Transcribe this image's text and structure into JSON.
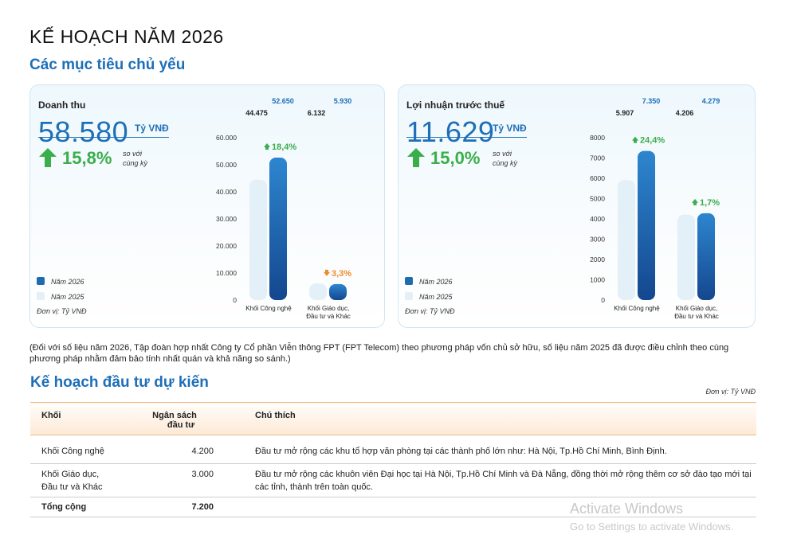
{
  "page_title": "KẾ HOẠCH NĂM 2026",
  "section1_title": "Các mục tiêu chủ yếu",
  "colors": {
    "accent": "#1d6fb8",
    "green": "#3aae4a",
    "orange": "#f08a2c",
    "bar2025": "#e4f0f8"
  },
  "revenue": {
    "label": "Doanh thu",
    "value": "58.580",
    "unit": "Tỷ VNĐ",
    "growth": "15,8%",
    "compare": [
      "so với",
      "cùng kỳ"
    ],
    "legend": [
      "Năm 2026",
      "Năm 2025"
    ],
    "unit_note": "Đơn vị: Tỷ VNĐ"
  },
  "profit": {
    "label": "Lợi nhuận trước thuế",
    "value": "11.629",
    "unit": "Tỷ VNĐ",
    "growth": "15,0%",
    "compare": [
      "so với",
      "cùng kỳ"
    ],
    "legend": [
      "Năm 2026",
      "Năm 2025"
    ],
    "unit_note": "Đơn vị: Tỷ VNĐ"
  },
  "chart_data": [
    {
      "type": "bar",
      "title": "Doanh thu",
      "categories": [
        "Khối Công nghệ",
        "Khối Giáo dục, Đầu tư và Khác"
      ],
      "series": [
        {
          "name": "Năm 2025",
          "values": [
            44475,
            6132
          ],
          "labels": [
            "44.475",
            "6.132"
          ]
        },
        {
          "name": "Năm 2026",
          "values": [
            52650,
            5930
          ],
          "labels": [
            "52.650",
            "5.930"
          ]
        }
      ],
      "growth": [
        "18,4%",
        "3,3%"
      ],
      "growth_direction": [
        "up",
        "down"
      ],
      "yticks": [
        "0",
        "10.000",
        "20.000",
        "30.000",
        "40.000",
        "50.000",
        "60.000"
      ],
      "ylim": [
        0,
        60000
      ]
    },
    {
      "type": "bar",
      "title": "Lợi nhuận trước thuế",
      "categories": [
        "Khối Công nghệ",
        "Khối Giáo dục, Đầu tư và Khác"
      ],
      "series": [
        {
          "name": "Năm 2025",
          "values": [
            5907,
            4206
          ],
          "labels": [
            "5.907",
            "4.206"
          ]
        },
        {
          "name": "Năm 2026",
          "values": [
            7350,
            4279
          ],
          "labels": [
            "7.350",
            "4.279"
          ]
        }
      ],
      "growth": [
        "24,4%",
        "1,7%"
      ],
      "growth_direction": [
        "up",
        "up"
      ],
      "yticks": [
        "0",
        "1000",
        "2000",
        "3000",
        "4000",
        "5000",
        "6000",
        "7000",
        "8000"
      ],
      "ylim": [
        0,
        8000
      ]
    }
  ],
  "note": "(Đối với số liệu năm 2026, Tập đoàn hợp nhất Công ty Cổ phần Viễn thông FPT (FPT Telecom) theo phương pháp vốn chủ sở hữu, số liệu năm 2025 đã được điều chỉnh theo cùng phương pháp nhằm đảm bảo tính nhất quán và khả năng so sánh.)",
  "section2_title": "Kế hoạch đầu tư dự kiến",
  "invest": {
    "unit_note": "Đơn vị: Tỷ VNĐ",
    "headers": {
      "col1": "Khối",
      "col2_line1": "Ngân sách",
      "col2_line2": "đầu tư",
      "col3": "Chú thích"
    },
    "rows": [
      {
        "name_line1": "Khối Công nghệ",
        "name_line2": "",
        "budget": "4.200",
        "note_line1": "Đầu tư mở rộng các khu tổ hợp văn phòng tại các thành phố lớn như: Hà Nội, Tp.Hồ Chí Minh, Bình Định.",
        "note_line2": ""
      },
      {
        "name_line1": "Khối Giáo dục,",
        "name_line2": "Đầu tư và Khác",
        "budget": "3.000",
        "note_line1": "Đầu tư mở rộng các khuôn viên Đại học tại Hà Nội, Tp.Hồ Chí Minh và Đà Nẵng, đồng thời mở rộng thêm cơ sở đào tạo mới tại",
        "note_line2": "các tỉnh, thành trên toàn quốc."
      }
    ],
    "total": {
      "label": "Tổng cộng",
      "budget": "7.200"
    }
  },
  "watermark": {
    "line1": "Activate Windows",
    "line2": "Go to Settings to activate Windows."
  }
}
